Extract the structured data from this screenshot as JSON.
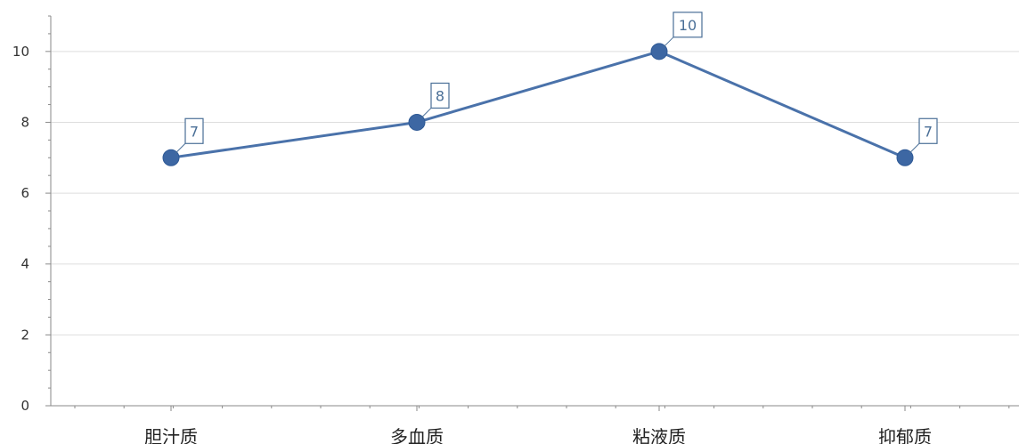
{
  "chart_data": {
    "type": "line",
    "title": "",
    "xlabel": "",
    "ylabel": "",
    "categories": [
      "胆汁质",
      "多血质",
      "粘液质",
      "抑郁质"
    ],
    "series": [
      {
        "values": [
          7,
          8,
          10,
          7
        ]
      }
    ],
    "ylim": [
      0,
      11
    ],
    "yticks": [
      0,
      2,
      4,
      6,
      8,
      10
    ],
    "grid": true,
    "legend": "none",
    "data_labels": true,
    "colors": {
      "line": "#4a72aa",
      "marker": "#3d67a3",
      "grid": "#dedede",
      "axis": "#8a8a8a",
      "label_border": "#4a6f97"
    }
  }
}
